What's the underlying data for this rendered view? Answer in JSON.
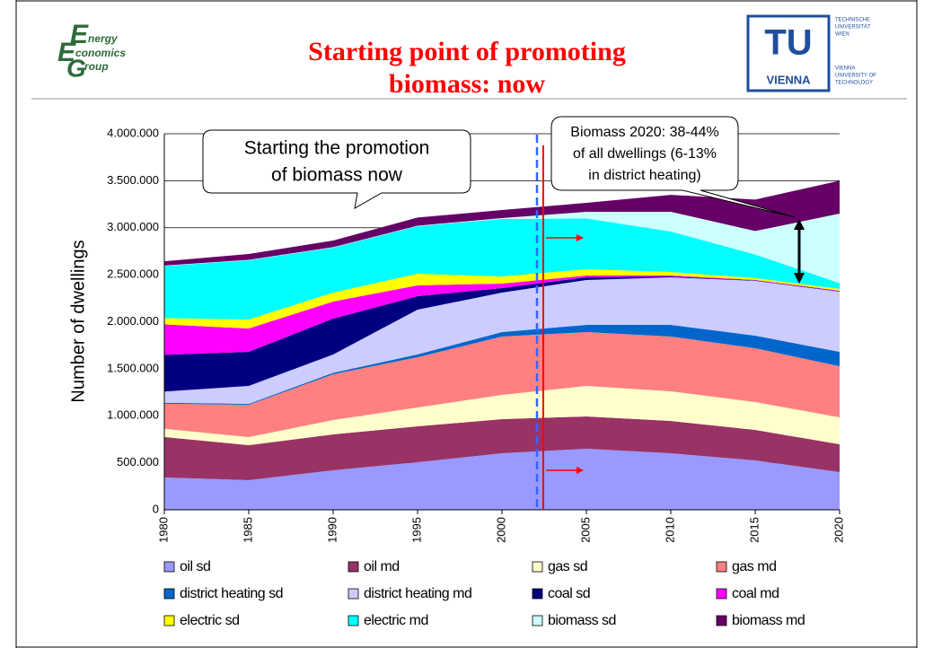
{
  "header": {
    "title_lines": [
      "Starting point of promoting",
      "biomass: now"
    ],
    "logo_left": [
      "E",
      "nergy",
      "E",
      "conomics",
      "G",
      "roup"
    ],
    "logo_right": {
      "mark": "TU",
      "city": "VIENNA",
      "lines": [
        "TECHNISCHE",
        "UNIVERSITÄT",
        "WIEN",
        "VIENNA",
        "UNIVERSITY OF",
        "TECHNOLOGY"
      ]
    }
  },
  "chart_data": {
    "type": "stacked_area",
    "ylabel": "Number of dwellings",
    "x": [
      1980,
      1985,
      1990,
      1995,
      2000,
      2005,
      2010,
      2015,
      2020
    ],
    "xlim": [
      1980,
      2020
    ],
    "xticks": [
      1980,
      1985,
      1990,
      1995,
      2000,
      2005,
      2010,
      2015,
      2020
    ],
    "ylim": [
      0,
      4000000
    ],
    "yticks": [
      0,
      {
        "value": 500000,
        "label": "500.000"
      },
      {
        "value": 1000000,
        "label": "1.000.000"
      },
      {
        "value": 1500000,
        "label": "1.500.000"
      },
      {
        "value": 2000000,
        "label": "2.000.000"
      },
      {
        "value": 2500000,
        "label": "2.500.000"
      },
      {
        "value": 3000000,
        "label": "3.000.000"
      },
      {
        "value": 3500000,
        "label": "3.500.000"
      },
      {
        "value": 4000000,
        "label": "4.000.000"
      }
    ],
    "grid": true,
    "annotations": [
      [
        "Starting the promotion",
        "of biomass now"
      ],
      [
        "Biomass 2020: 38-44%",
        "of all dwellings (6-13%",
        "in district heating)"
      ]
    ],
    "series": [
      {
        "name": "oil sd",
        "color": "#9999ff",
        "values": [
          344000,
          315000,
          420000,
          506000,
          601000,
          649000,
          601000,
          525000,
          401000
        ]
      },
      {
        "name": "oil md",
        "color": "#993366",
        "values": [
          430000,
          372000,
          382000,
          382000,
          363000,
          344000,
          344000,
          325000,
          296000
        ]
      },
      {
        "name": "gas sd",
        "color": "#ffffcc",
        "values": [
          87000,
          86000,
          153000,
          200000,
          258000,
          324000,
          315000,
          296000,
          286000
        ]
      },
      {
        "name": "gas md",
        "color": "#ff8080",
        "values": [
          267000,
          344000,
          487000,
          535000,
          621000,
          573000,
          583000,
          572000,
          544000
        ]
      },
      {
        "name": "district heating sd",
        "color": "#0066cc",
        "values": [
          10000,
          10000,
          15000,
          30000,
          47000,
          77000,
          124000,
          134000,
          153000
        ]
      },
      {
        "name": "district heating md",
        "color": "#ccccff",
        "values": [
          120000,
          190000,
          195000,
          476000,
          420000,
          477000,
          506000,
          583000,
          640000
        ]
      },
      {
        "name": "coal sd",
        "color": "#000080",
        "values": [
          390000,
          363000,
          381000,
          143000,
          48000,
          29000,
          9000,
          5000,
          5000
        ]
      },
      {
        "name": "coal md",
        "color": "#ff00ff",
        "values": [
          325000,
          248000,
          182000,
          115000,
          48000,
          19000,
          10000,
          5000,
          5000
        ]
      },
      {
        "name": "electric sd",
        "color": "#ffff00",
        "values": [
          66000,
          96000,
          95000,
          124000,
          76000,
          67000,
          38000,
          20000,
          20000
        ]
      },
      {
        "name": "electric md",
        "color": "#00ffff",
        "values": [
          554000,
          630000,
          478000,
          506000,
          611000,
          540000,
          430000,
          250000,
          60000
        ]
      },
      {
        "name": "biomass sd",
        "color": "#ccffff",
        "values": [
          5000,
          5000,
          5000,
          5000,
          10000,
          70000,
          210000,
          250000,
          740000
        ]
      },
      {
        "name": "biomass md",
        "color": "#660066",
        "values": [
          45000,
          62000,
          71000,
          86000,
          85000,
          96000,
          180000,
          335000,
          350000
        ]
      }
    ]
  }
}
